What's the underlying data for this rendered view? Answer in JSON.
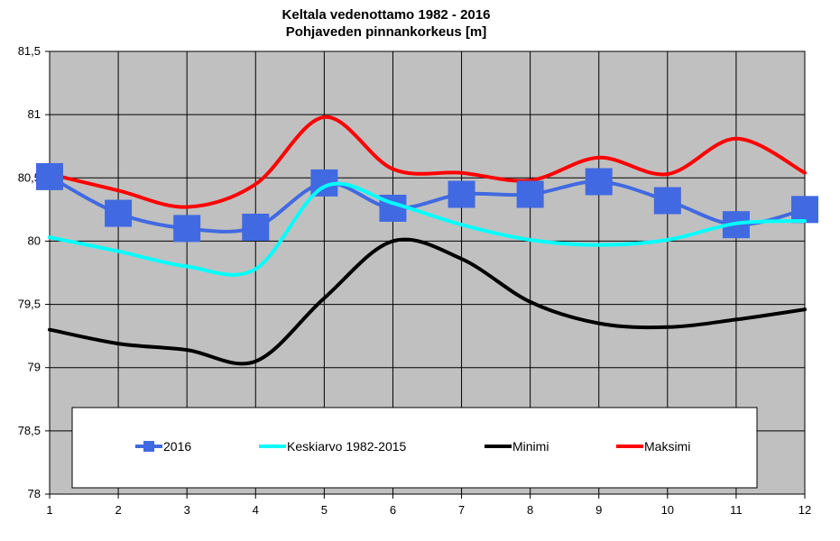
{
  "chart_data": {
    "type": "line",
    "title": "Keltala vedenottamo 1982 - 2016",
    "subtitle": "Pohjaveden pinnankorkeus [m]",
    "xlabel": "",
    "ylabel": "",
    "x": [
      1,
      2,
      3,
      4,
      5,
      6,
      7,
      8,
      9,
      10,
      11,
      12
    ],
    "x_tick_labels": [
      "1",
      "2",
      "3",
      "4",
      "5",
      "6",
      "7",
      "8",
      "9",
      "10",
      "11",
      "12"
    ],
    "ylim": [
      78,
      81.5
    ],
    "y_tick_labels": [
      "78",
      "78,5",
      "79",
      "79,5",
      "80",
      "80,5",
      "81",
      "81,5"
    ],
    "grid": true,
    "legend_position": "bottom",
    "series": [
      {
        "name": "2016",
        "color": "#4169E1",
        "marker": "square",
        "values": [
          80.51,
          80.22,
          80.1,
          80.11,
          80.46,
          80.26,
          80.37,
          80.37,
          80.47,
          80.32,
          80.13,
          80.25
        ]
      },
      {
        "name": "Keskiarvo 1982-2015",
        "color": "#00FFFF",
        "marker": "none",
        "values": [
          80.03,
          79.92,
          79.8,
          79.78,
          80.43,
          80.3,
          80.13,
          80.01,
          79.97,
          80.01,
          80.14,
          80.16
        ]
      },
      {
        "name": "Minimi",
        "color": "#000000",
        "marker": "none",
        "values": [
          79.3,
          79.19,
          79.14,
          79.05,
          79.55,
          80.0,
          79.86,
          79.52,
          79.35,
          79.32,
          79.38,
          79.46
        ]
      },
      {
        "name": "Maksimi",
        "color": "#FF0000",
        "marker": "none",
        "values": [
          80.53,
          80.4,
          80.27,
          80.45,
          80.98,
          80.57,
          80.54,
          80.48,
          80.66,
          80.53,
          80.81,
          80.54
        ]
      }
    ]
  }
}
